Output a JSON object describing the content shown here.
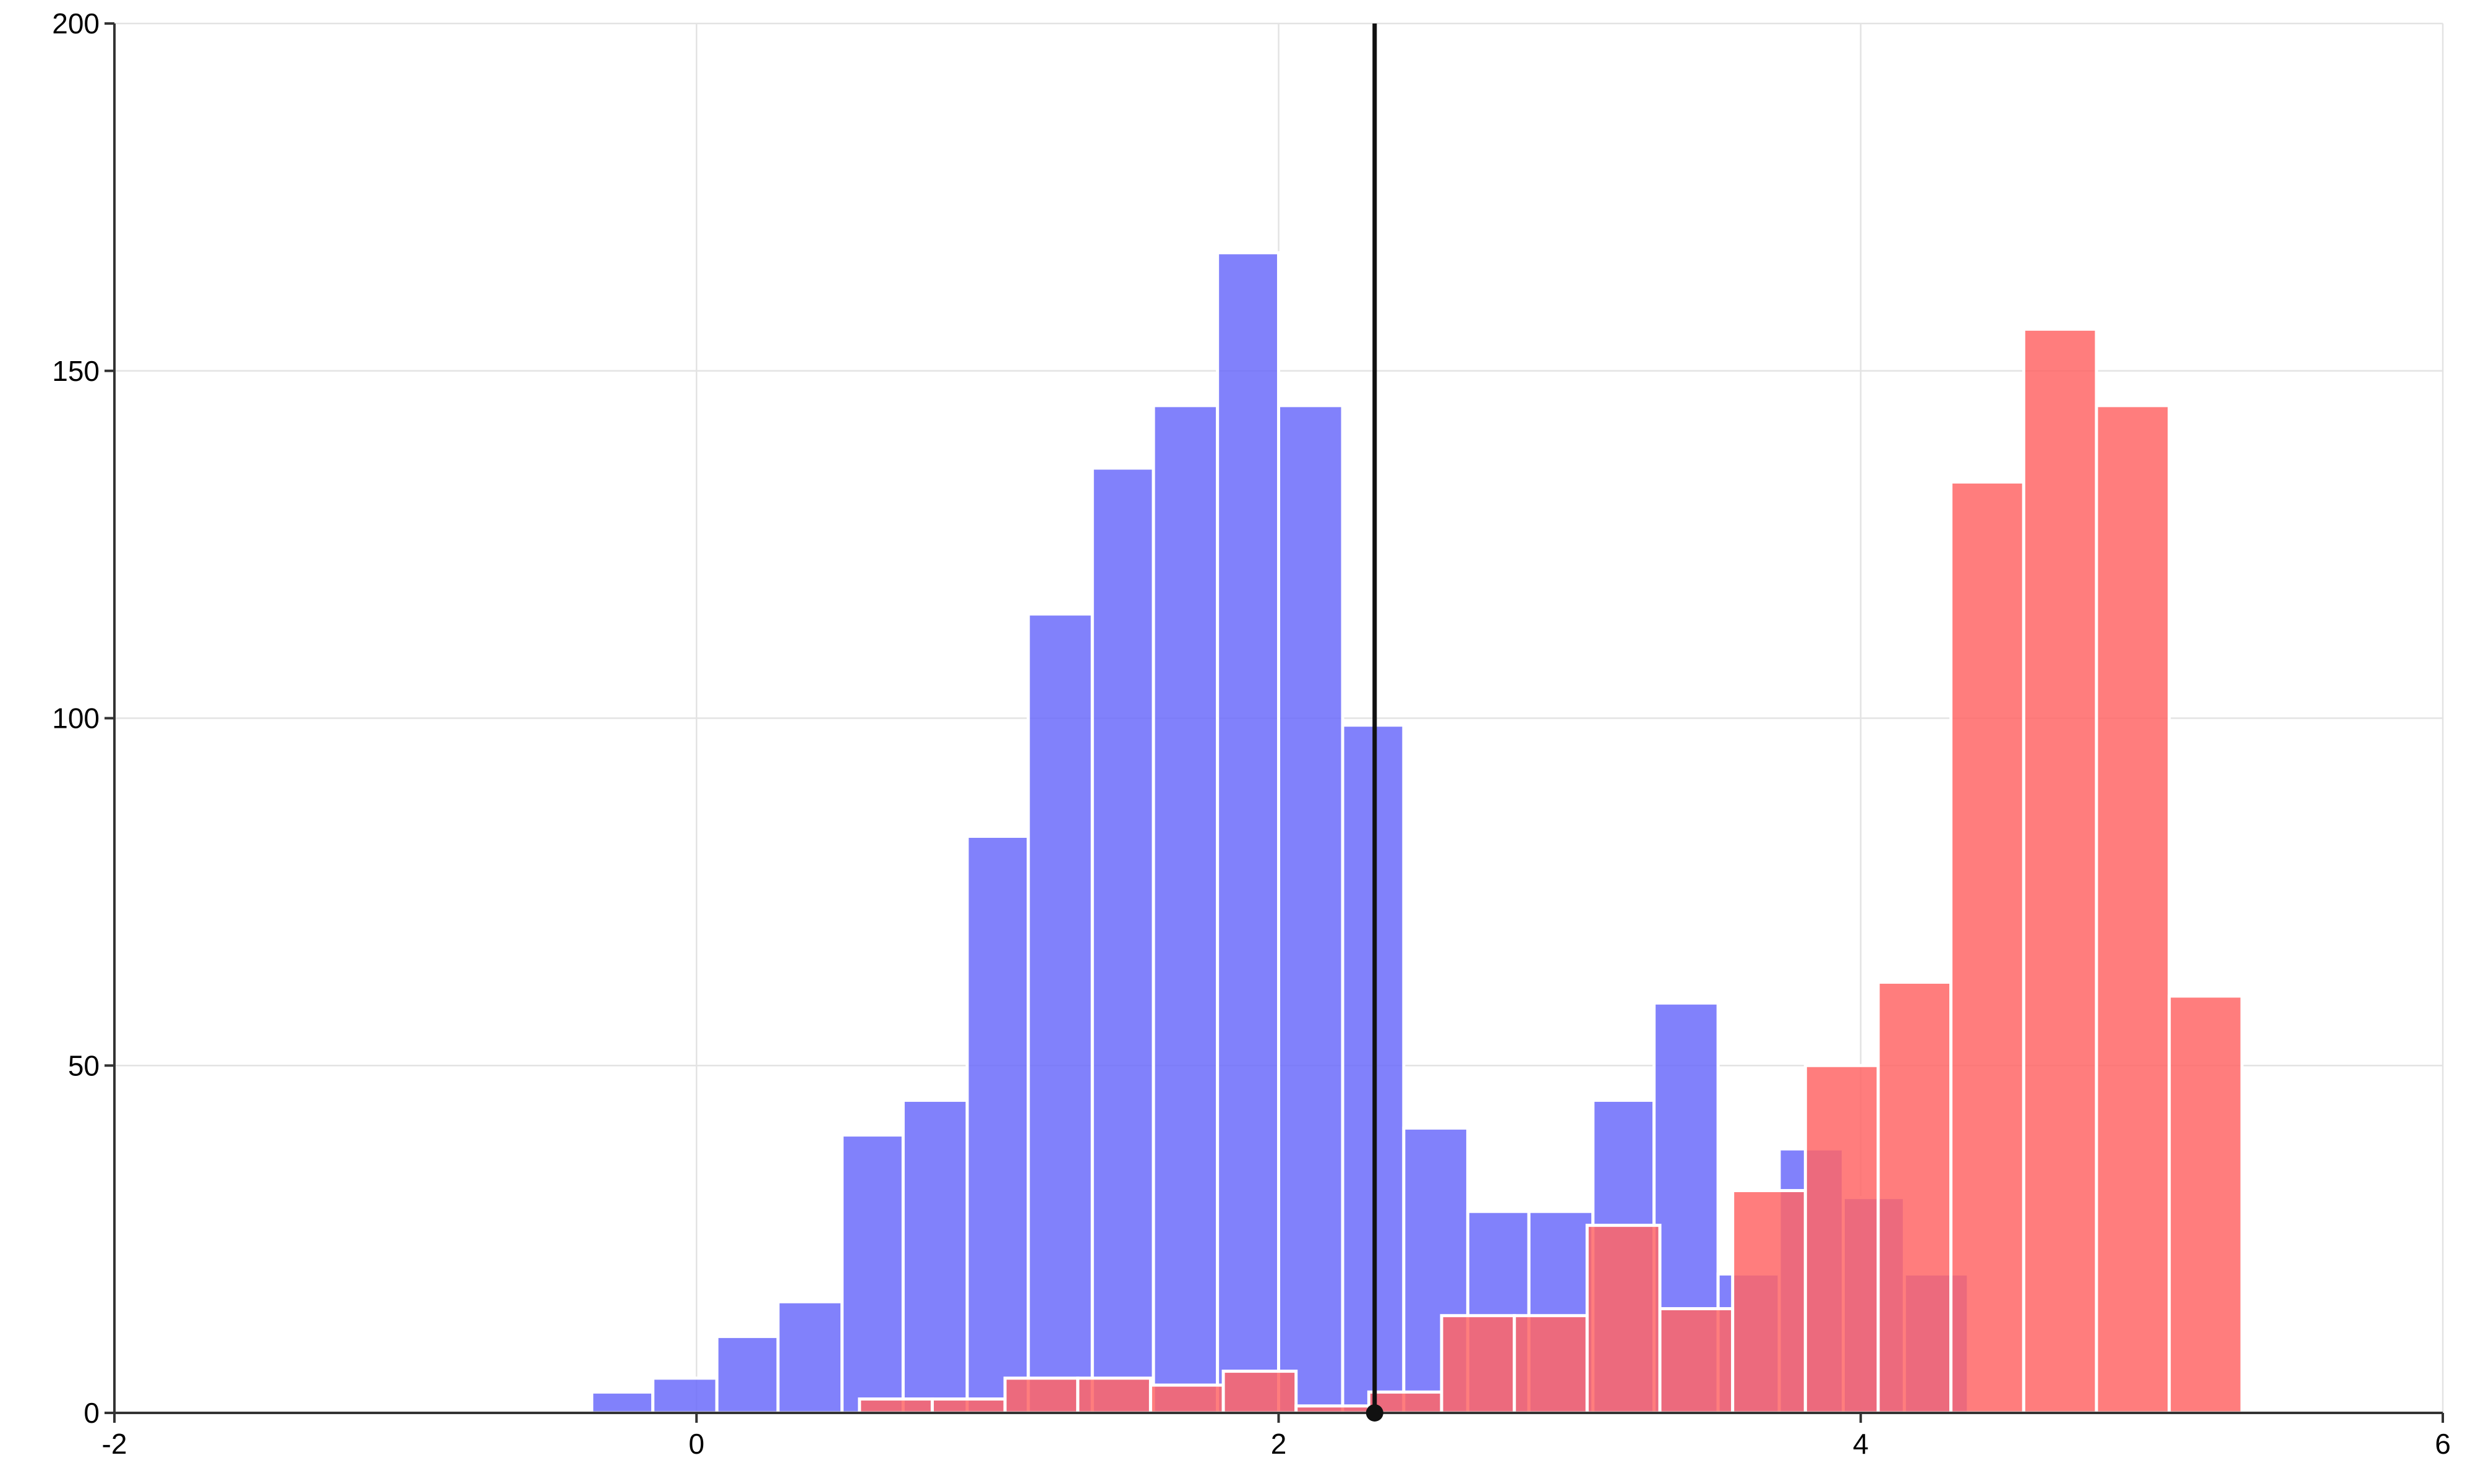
{
  "chart_data": {
    "type": "bar",
    "title": "",
    "xlabel": "",
    "ylabel": "",
    "xlim": [
      -2,
      6
    ],
    "ylim": [
      0,
      200
    ],
    "x_ticks": [
      -2,
      0,
      2,
      4,
      6
    ],
    "y_ticks": [
      0,
      50,
      100,
      150,
      200
    ],
    "x_tick_labels": [
      "-2",
      "0",
      "2",
      "4",
      "6"
    ],
    "y_tick_labels": [
      "0",
      "50",
      "100",
      "150",
      "200"
    ],
    "grid": true,
    "legend": "none",
    "series": [
      {
        "color": "#6b6bfa",
        "opacity": 0.85,
        "bins": [
          {
            "x0": -0.36,
            "x1": -0.15,
            "value": 3
          },
          {
            "x0": -0.15,
            "x1": 0.07,
            "value": 5
          },
          {
            "x0": 0.07,
            "x1": 0.28,
            "value": 11
          },
          {
            "x0": 0.28,
            "x1": 0.5,
            "value": 16
          },
          {
            "x0": 0.5,
            "x1": 0.71,
            "value": 40
          },
          {
            "x0": 0.71,
            "x1": 0.93,
            "value": 45
          },
          {
            "x0": 0.93,
            "x1": 1.14,
            "value": 83
          },
          {
            "x0": 1.14,
            "x1": 1.36,
            "value": 115
          },
          {
            "x0": 1.36,
            "x1": 1.57,
            "value": 136
          },
          {
            "x0": 1.57,
            "x1": 1.79,
            "value": 145
          },
          {
            "x0": 1.79,
            "x1": 2.0,
            "value": 167
          },
          {
            "x0": 2.0,
            "x1": 2.22,
            "value": 145
          },
          {
            "x0": 2.22,
            "x1": 2.43,
            "value": 99
          },
          {
            "x0": 2.43,
            "x1": 2.65,
            "value": 41
          },
          {
            "x0": 2.65,
            "x1": 2.86,
            "value": 29
          },
          {
            "x0": 2.86,
            "x1": 3.08,
            "value": 29
          },
          {
            "x0": 3.08,
            "x1": 3.29,
            "value": 45
          },
          {
            "x0": 3.29,
            "x1": 3.51,
            "value": 59
          },
          {
            "x0": 3.51,
            "x1": 3.72,
            "value": 20
          },
          {
            "x0": 3.72,
            "x1": 3.94,
            "value": 38
          },
          {
            "x0": 3.94,
            "x1": 4.15,
            "value": 31
          },
          {
            "x0": 4.15,
            "x1": 4.37,
            "value": 20
          }
        ]
      },
      {
        "color": "#ff6666",
        "opacity": 0.85,
        "bins": [
          {
            "x0": 0.56,
            "x1": 0.81,
            "value": 2
          },
          {
            "x0": 0.81,
            "x1": 1.06,
            "value": 2
          },
          {
            "x0": 1.06,
            "x1": 1.31,
            "value": 5
          },
          {
            "x0": 1.31,
            "x1": 1.56,
            "value": 5
          },
          {
            "x0": 1.56,
            "x1": 1.81,
            "value": 4
          },
          {
            "x0": 1.81,
            "x1": 2.06,
            "value": 6
          },
          {
            "x0": 2.06,
            "x1": 2.31,
            "value": 1
          },
          {
            "x0": 2.31,
            "x1": 2.56,
            "value": 3
          },
          {
            "x0": 2.56,
            "x1": 2.81,
            "value": 14
          },
          {
            "x0": 2.81,
            "x1": 3.06,
            "value": 14
          },
          {
            "x0": 3.06,
            "x1": 3.31,
            "value": 27
          },
          {
            "x0": 3.31,
            "x1": 3.56,
            "value": 15
          },
          {
            "x0": 3.56,
            "x1": 3.81,
            "value": 32
          },
          {
            "x0": 3.81,
            "x1": 4.06,
            "value": 50
          },
          {
            "x0": 4.06,
            "x1": 4.31,
            "value": 62
          },
          {
            "x0": 4.31,
            "x1": 4.56,
            "value": 134
          },
          {
            "x0": 4.56,
            "x1": 4.81,
            "value": 156
          },
          {
            "x0": 4.81,
            "x1": 5.06,
            "value": 145
          },
          {
            "x0": 5.06,
            "x1": 5.31,
            "value": 60
          }
        ]
      }
    ],
    "threshold": {
      "x": 2.33,
      "color": "#111111"
    }
  }
}
